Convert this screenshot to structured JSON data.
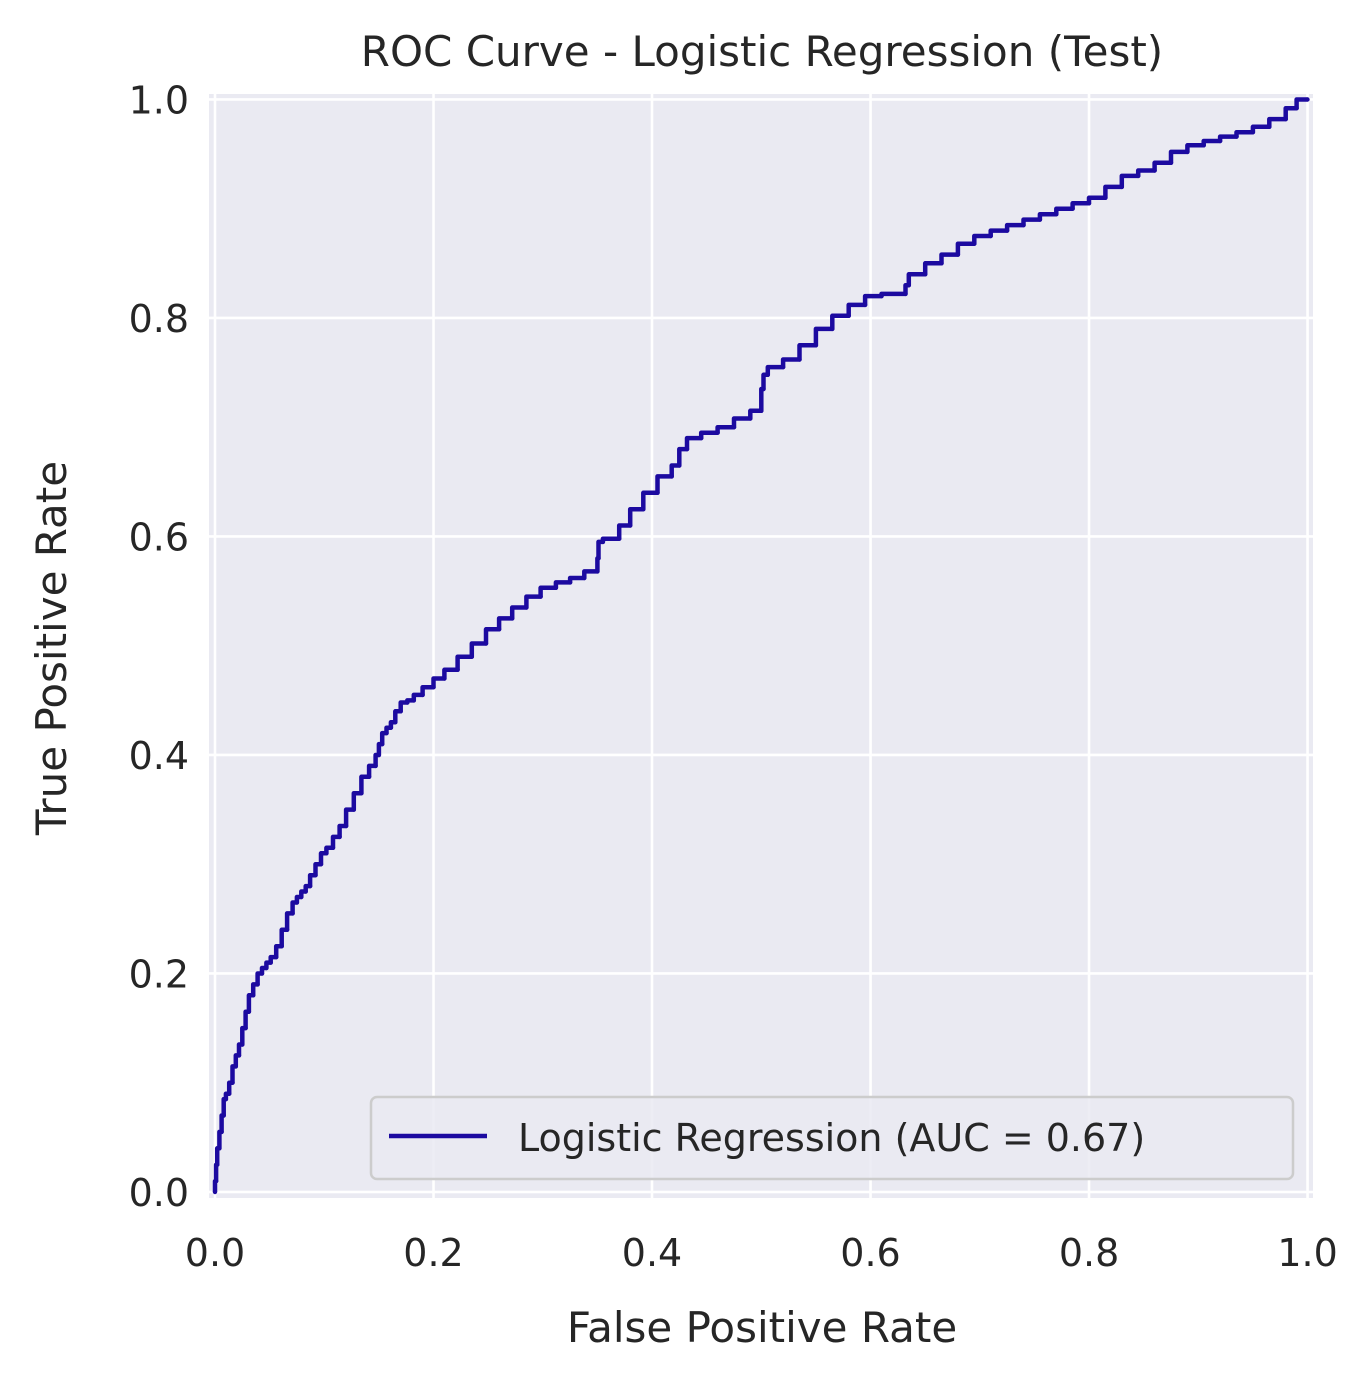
{
  "chart_data": {
    "type": "line",
    "title": "ROC Curve - Logistic Regression (Test)",
    "xlabel": "False Positive Rate",
    "ylabel": "True Positive Rate",
    "xlim": [
      0.0,
      1.0
    ],
    "ylim": [
      0.0,
      1.0
    ],
    "x_ticks": [
      "0.0",
      "0.2",
      "0.4",
      "0.6",
      "0.8",
      "1.0"
    ],
    "y_ticks": [
      "0.0",
      "0.2",
      "0.4",
      "0.6",
      "0.8",
      "1.0"
    ],
    "grid": true,
    "legend_position": "lower-right",
    "background_color": "#eaeaf2",
    "series": [
      {
        "name": "Logistic Regression (AUC = 0.67)",
        "color": "#1c0aa0",
        "x": [
          0.0,
          0.001,
          0.002,
          0.004,
          0.006,
          0.008,
          0.01,
          0.013,
          0.016,
          0.019,
          0.022,
          0.025,
          0.028,
          0.031,
          0.035,
          0.039,
          0.043,
          0.047,
          0.051,
          0.056,
          0.061,
          0.066,
          0.071,
          0.075,
          0.079,
          0.083,
          0.087,
          0.092,
          0.097,
          0.102,
          0.108,
          0.114,
          0.12,
          0.127,
          0.134,
          0.141,
          0.147,
          0.15,
          0.153,
          0.157,
          0.161,
          0.165,
          0.17,
          0.176,
          0.182,
          0.19,
          0.2,
          0.21,
          0.222,
          0.235,
          0.248,
          0.26,
          0.272,
          0.285,
          0.298,
          0.312,
          0.325,
          0.338,
          0.35,
          0.351,
          0.355,
          0.37,
          0.38,
          0.392,
          0.405,
          0.418,
          0.425,
          0.432,
          0.445,
          0.46,
          0.475,
          0.49,
          0.5,
          0.502,
          0.506,
          0.52,
          0.535,
          0.55,
          0.565,
          0.58,
          0.595,
          0.61,
          0.632,
          0.635,
          0.65,
          0.665,
          0.68,
          0.695,
          0.71,
          0.725,
          0.74,
          0.755,
          0.77,
          0.785,
          0.8,
          0.815,
          0.83,
          0.845,
          0.86,
          0.875,
          0.89,
          0.905,
          0.92,
          0.935,
          0.95,
          0.965,
          0.98,
          0.99,
          1.0
        ],
        "y": [
          0.0,
          0.01,
          0.025,
          0.04,
          0.055,
          0.07,
          0.085,
          0.09,
          0.1,
          0.115,
          0.125,
          0.135,
          0.15,
          0.165,
          0.18,
          0.19,
          0.2,
          0.205,
          0.21,
          0.215,
          0.225,
          0.24,
          0.255,
          0.265,
          0.27,
          0.275,
          0.28,
          0.29,
          0.3,
          0.31,
          0.315,
          0.325,
          0.335,
          0.35,
          0.365,
          0.38,
          0.39,
          0.4,
          0.41,
          0.42,
          0.425,
          0.43,
          0.44,
          0.448,
          0.45,
          0.455,
          0.462,
          0.47,
          0.478,
          0.49,
          0.502,
          0.515,
          0.525,
          0.535,
          0.545,
          0.553,
          0.558,
          0.562,
          0.568,
          0.58,
          0.595,
          0.598,
          0.61,
          0.625,
          0.64,
          0.655,
          0.665,
          0.68,
          0.69,
          0.695,
          0.7,
          0.708,
          0.715,
          0.735,
          0.748,
          0.755,
          0.762,
          0.775,
          0.79,
          0.802,
          0.812,
          0.82,
          0.822,
          0.83,
          0.84,
          0.85,
          0.858,
          0.868,
          0.875,
          0.88,
          0.885,
          0.89,
          0.895,
          0.9,
          0.905,
          0.91,
          0.92,
          0.93,
          0.935,
          0.942,
          0.952,
          0.958,
          0.962,
          0.966,
          0.97,
          0.975,
          0.982,
          0.992,
          1.0
        ]
      }
    ]
  }
}
